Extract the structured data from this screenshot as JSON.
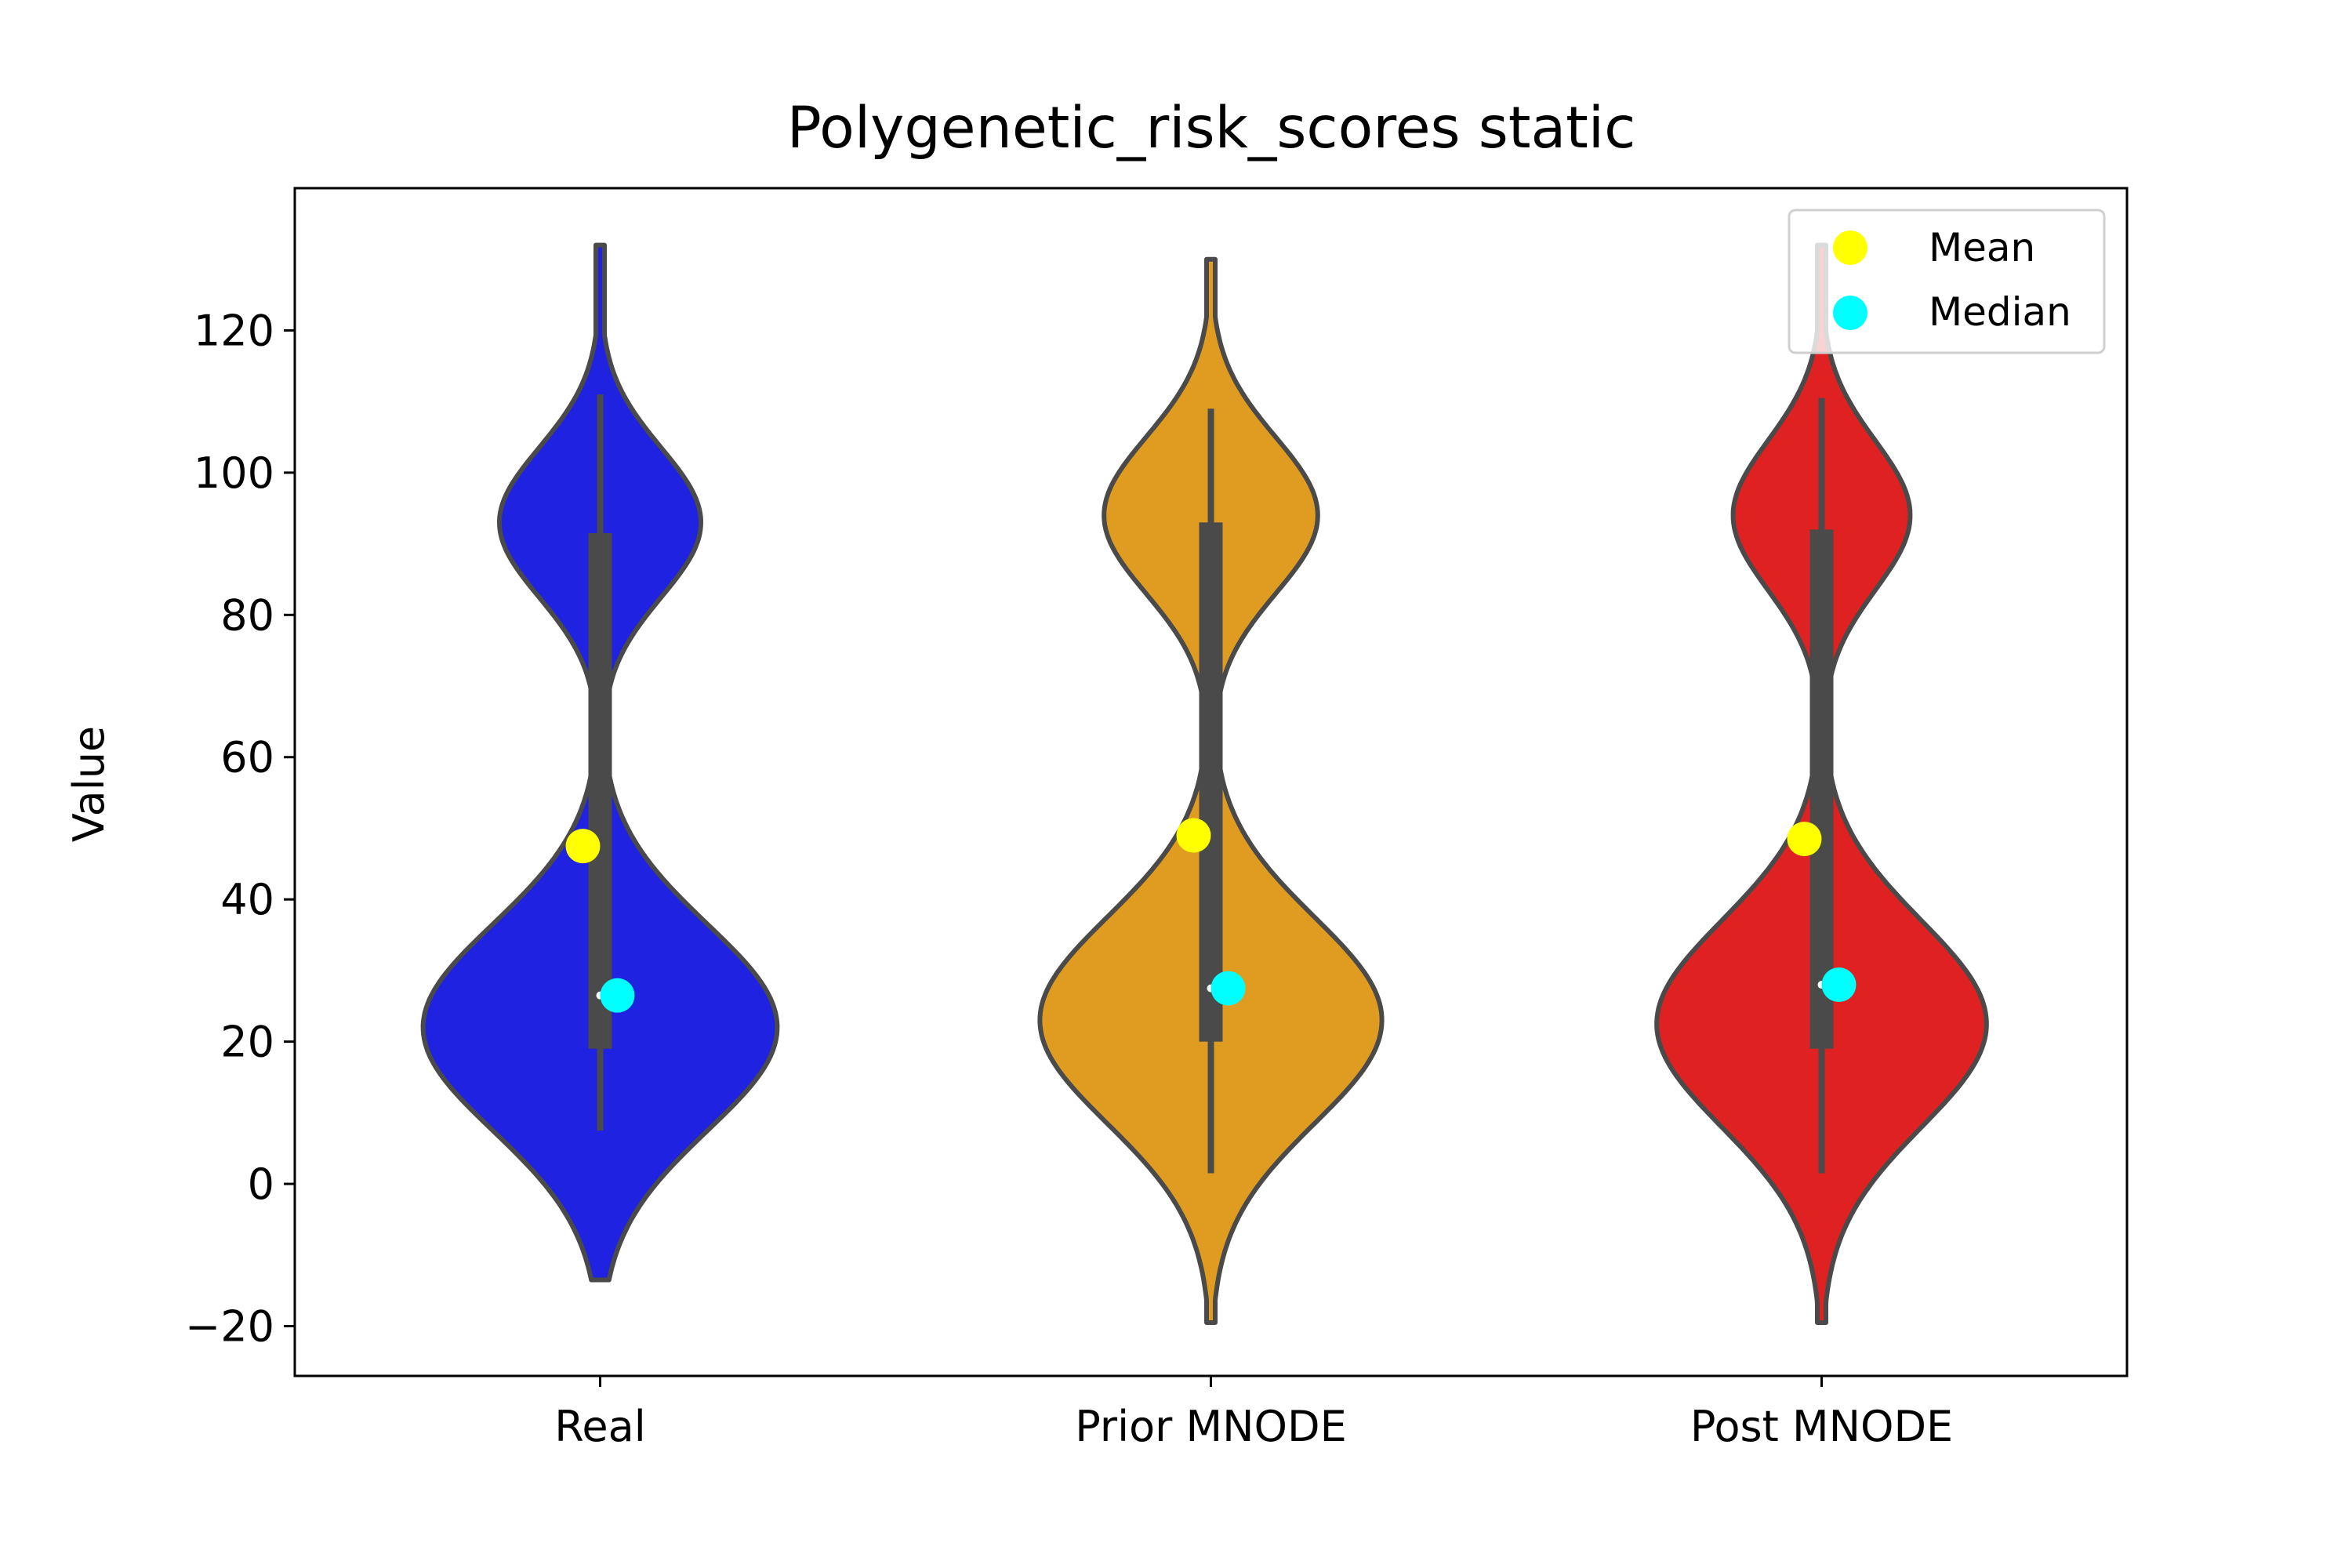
{
  "chart_data": {
    "type": "violin",
    "title": "Polygenetic_risk_scores static",
    "xlabel": "",
    "ylabel": "Value",
    "ylim": [
      -27,
      140
    ],
    "yticks": [
      -20,
      0,
      20,
      40,
      60,
      80,
      100,
      120
    ],
    "ytick_labels": [
      "−20",
      "0",
      "20",
      "40",
      "60",
      "80",
      "100",
      "120"
    ],
    "categories": [
      "Real",
      "Prior MNODE",
      "Post MNODE"
    ],
    "grid": false,
    "legend": {
      "placement": "top-right",
      "entries": [
        {
          "label": "Mean",
          "color": "#ffff00"
        },
        {
          "label": "Median",
          "color": "#00ffff"
        }
      ]
    },
    "series": [
      {
        "category": "Real",
        "color": "#1f22e0",
        "kde_range": [
          -13.5,
          132
        ],
        "modes": [
          {
            "center": 22,
            "half_width": 29,
            "sigma": 14.5
          },
          {
            "center": 93,
            "half_width": 16.5,
            "sigma": 10.5
          }
        ],
        "whisker": [
          7.5,
          111
        ],
        "iqr": [
          19,
          91.5
        ],
        "mean": 47.5,
        "median": 26.5
      },
      {
        "category": "Prior MNODE",
        "color": "#e09c21",
        "kde_range": [
          -19.5,
          130
        ],
        "modes": [
          {
            "center": 23,
            "half_width": 28,
            "sigma": 14.5
          },
          {
            "center": 94,
            "half_width": 17.5,
            "sigma": 11
          }
        ],
        "whisker": [
          1.5,
          109
        ],
        "iqr": [
          20,
          93
        ],
        "mean": 49,
        "median": 27.5
      },
      {
        "category": "Post MNODE",
        "color": "#e02121",
        "kde_range": [
          -19.5,
          132
        ],
        "modes": [
          {
            "center": 22.5,
            "half_width": 27,
            "sigma": 14.5
          },
          {
            "center": 94,
            "half_width": 14.5,
            "sigma": 10.5
          }
        ],
        "whisker": [
          1.5,
          110.5
        ],
        "iqr": [
          19,
          92
        ],
        "mean": 48.5,
        "median": 28
      }
    ]
  },
  "colors": {
    "outline": "#4a4a4a",
    "axes": "#000000",
    "mean_marker": "#ffff00",
    "median_marker": "#00ffff"
  }
}
